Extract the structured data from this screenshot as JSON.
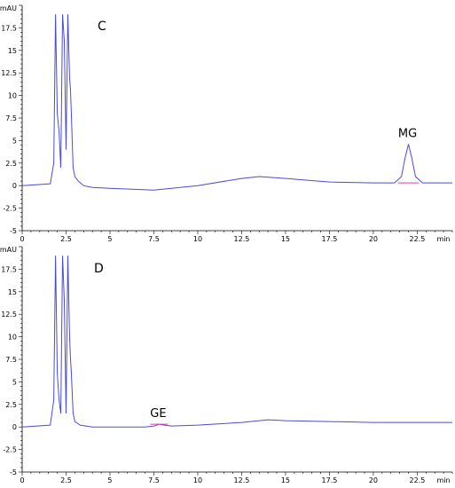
{
  "chart_data": [
    {
      "type": "line",
      "panel_label": "C",
      "y_unit": "mAU",
      "x_unit": "min",
      "xlim": [
        0,
        24.5
      ],
      "ylim": [
        -5,
        20
      ],
      "x_ticks": [
        "0",
        "2.5",
        "5",
        "7.5",
        "10",
        "12.5",
        "15",
        "17.5",
        "20",
        "22.5"
      ],
      "y_ticks": [
        "-5",
        "-2.5",
        "0",
        "2.5",
        "5",
        "7.5",
        "10",
        "12.5",
        "15",
        "17.5"
      ],
      "series": [
        {
          "color": "#4b4bd6",
          "x": [
            0,
            1.6,
            1.8,
            1.9,
            2.0,
            2.1,
            2.2,
            2.3,
            2.4,
            2.5,
            2.6,
            2.7,
            2.75,
            2.8,
            2.9,
            3.0,
            3.2,
            3.5,
            4,
            5,
            7.5,
            10,
            12.5,
            13.5,
            15,
            17.5,
            20,
            21.2,
            21.6,
            21.8,
            22.0,
            22.2,
            22.4,
            22.8,
            24.5
          ],
          "y": [
            0,
            0.2,
            2.5,
            19,
            8,
            6,
            2.0,
            19,
            16,
            4,
            19,
            12,
            10.7,
            8,
            2.0,
            1.0,
            0.5,
            0,
            -0.2,
            -0.3,
            -0.5,
            0.0,
            0.8,
            1.0,
            0.8,
            0.4,
            0.3,
            0.3,
            1.0,
            3.0,
            4.6,
            3.0,
            1.0,
            0.3,
            0.3
          ]
        }
      ],
      "peaks": [
        {
          "label": "MG",
          "x": 22.0,
          "y": 4.6,
          "start": 21.4,
          "end": 22.6
        }
      ]
    },
    {
      "type": "line",
      "panel_label": "D",
      "y_unit": "mAU",
      "x_unit": "min",
      "xlim": [
        0,
        24.5
      ],
      "ylim": [
        -5,
        20
      ],
      "x_ticks": [
        "0",
        "2.5",
        "5",
        "7.5",
        "10",
        "12.5",
        "15",
        "17.5",
        "20",
        "22.5"
      ],
      "y_ticks": [
        "-5",
        "-2.5",
        "0",
        "2.5",
        "5",
        "7.5",
        "10",
        "12.5",
        "15",
        "17.5"
      ],
      "series": [
        {
          "color": "#4b4bd6",
          "x": [
            0,
            1.6,
            1.8,
            1.9,
            2.0,
            2.1,
            2.2,
            2.3,
            2.4,
            2.5,
            2.6,
            2.7,
            2.75,
            2.8,
            2.9,
            3.0,
            3.3,
            4,
            5,
            7.0,
            7.5,
            7.8,
            8.1,
            8.5,
            10,
            12.5,
            14,
            15,
            17.5,
            20,
            22.5,
            24.5
          ],
          "y": [
            0,
            0.2,
            3,
            19,
            6,
            3,
            1.5,
            19,
            14,
            1.5,
            19,
            10,
            7.7,
            6,
            1.5,
            0.6,
            0.2,
            0,
            0,
            0,
            0.1,
            0.3,
            0.2,
            0.1,
            0.2,
            0.5,
            0.8,
            0.7,
            0.6,
            0.5,
            0.5,
            0.5
          ]
        }
      ],
      "peaks": [
        {
          "label": "GE",
          "x": 7.8,
          "y": 0.3,
          "start": 7.3,
          "end": 8.3
        }
      ]
    }
  ]
}
